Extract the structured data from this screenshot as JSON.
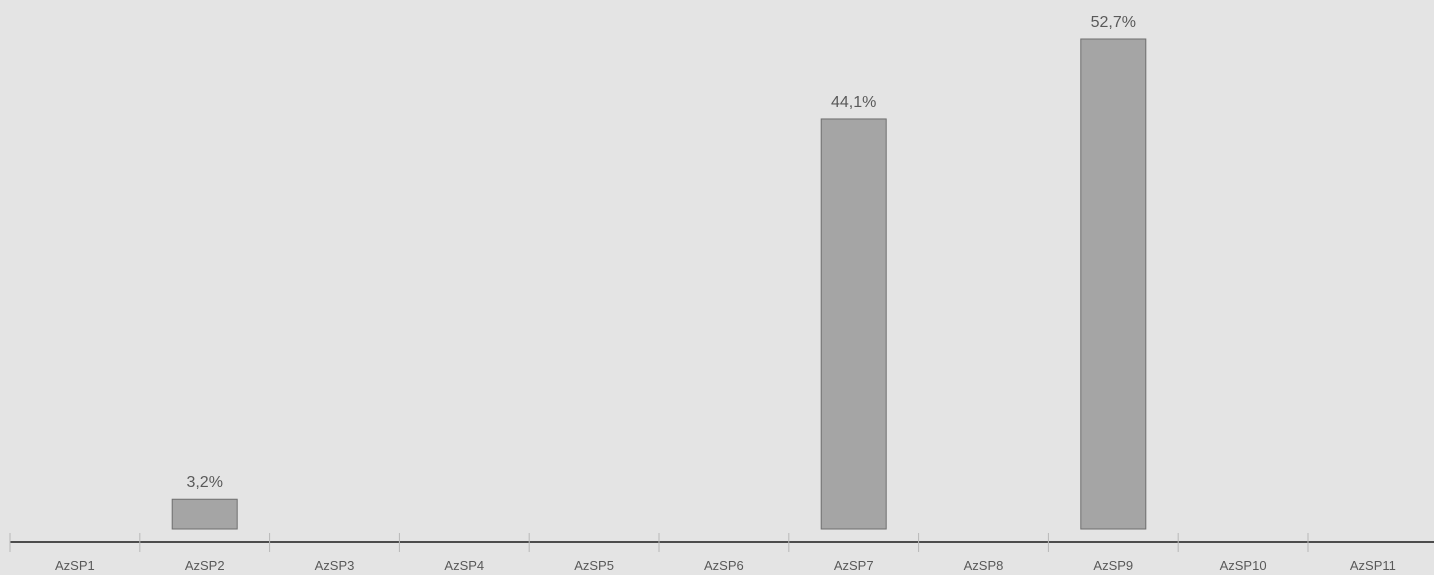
{
  "chart_data": {
    "type": "bar",
    "title": "",
    "xlabel": "",
    "ylabel": "",
    "categories": [
      "AzSP1",
      "AzSP2",
      "AzSP3",
      "AzSP4",
      "AzSP5",
      "AzSP6",
      "AzSP7",
      "AzSP8",
      "AzSP9",
      "AzSP10",
      "AzSP11"
    ],
    "values": [
      null,
      3.2,
      null,
      null,
      null,
      null,
      44.1,
      null,
      52.7,
      null,
      null
    ],
    "value_labels": [
      "",
      "3,2%",
      "",
      "",
      "",
      "",
      "44,1%",
      "",
      "52,7%",
      "",
      ""
    ],
    "ylim": [
      0,
      52.7
    ],
    "grid": false,
    "legend": "none",
    "colors": {
      "background": "#e4e4e4",
      "bar_fill": "#a5a5a5",
      "bar_stroke": "#6e6e6e",
      "axis": "#1a1a1a",
      "tick": "#b8b8b8",
      "text": "#595959"
    }
  }
}
